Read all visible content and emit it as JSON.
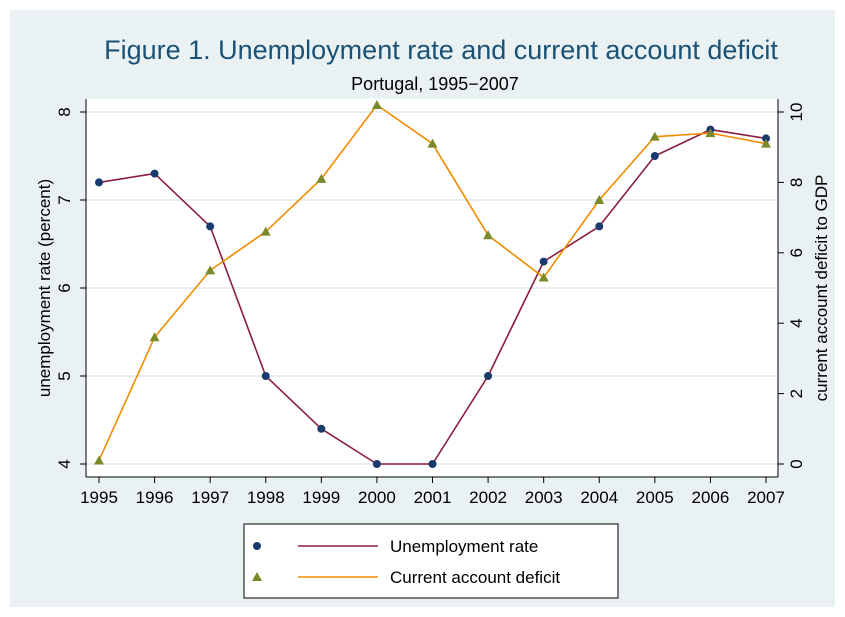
{
  "chart_data": {
    "type": "line",
    "title": "Figure 1.  Unemployment rate and current account deficit",
    "subtitle": "Portugal, 1995−2007",
    "xlabel": "",
    "ylabel_left": "unemployment rate (percent)",
    "ylabel_right": "current account deficit to GDP",
    "x": [
      1995,
      1996,
      1997,
      1998,
      1999,
      2000,
      2001,
      2002,
      2003,
      2004,
      2005,
      2006,
      2007
    ],
    "x_ticks": [
      "1995",
      "1996",
      "1997",
      "1998",
      "1999",
      "2000",
      "2001",
      "2002",
      "2003",
      "2004",
      "2005",
      "2006",
      "2007"
    ],
    "ylim_left": [
      4,
      8
    ],
    "yticks_left": [
      "4",
      "5",
      "6",
      "7",
      "8"
    ],
    "ylim_right": [
      0,
      10
    ],
    "yticks_right": [
      "0",
      "2",
      "4",
      "6",
      "8",
      "10"
    ],
    "grid": true,
    "legend_position": "bottom",
    "series": [
      {
        "name": "Unemployment rate",
        "axis": "left",
        "marker": "circle",
        "marker_color": "#1a3a6e",
        "line_color": "#8b1e3f",
        "values": [
          7.2,
          7.3,
          6.7,
          5.0,
          4.4,
          4.0,
          4.0,
          5.0,
          6.3,
          6.7,
          7.5,
          7.8,
          7.7
        ]
      },
      {
        "name": "Current account deficit",
        "axis": "right",
        "marker": "triangle",
        "marker_color": "#7a8a2a",
        "line_color": "#f08c00",
        "values": [
          0.1,
          3.6,
          5.5,
          6.6,
          8.1,
          10.2,
          9.1,
          6.5,
          5.3,
          7.5,
          9.3,
          9.4,
          9.1
        ]
      }
    ]
  }
}
